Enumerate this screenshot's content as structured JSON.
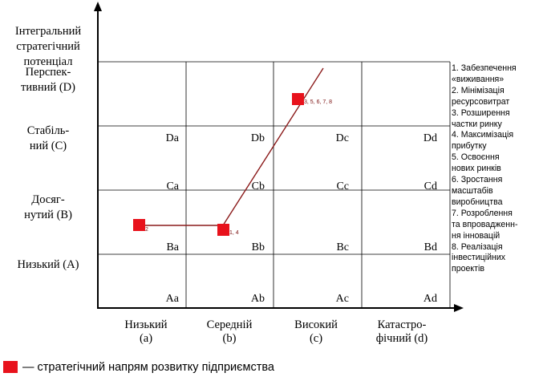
{
  "y_axis": {
    "title_lines": [
      "Інтегральний",
      "стратегічний",
      "потенціал"
    ],
    "levels": [
      {
        "lines": [
          "Перспек-",
          "тивний (D)"
        ]
      },
      {
        "lines": [
          "Стабіль-",
          "ний (C)"
        ]
      },
      {
        "lines": [
          "Досяг-",
          "нутий (B)"
        ]
      },
      {
        "lines": [
          "Низький (A)"
        ]
      }
    ]
  },
  "x_axis": {
    "levels": [
      {
        "lines": [
          "Низький",
          "(a)"
        ]
      },
      {
        "lines": [
          "Середній",
          "(b)"
        ]
      },
      {
        "lines": [
          "Високий",
          "(c)"
        ]
      },
      {
        "lines": [
          "Катастро-",
          "фічний (d)"
        ]
      }
    ]
  },
  "cells": [
    [
      "Da",
      "Db",
      "Dc",
      "Dd"
    ],
    [
      "Ca",
      "Cb",
      "Cc",
      "Cd"
    ],
    [
      "Ba",
      "Bb",
      "Bc",
      "Bd"
    ],
    [
      "Aa",
      "Ab",
      "Ac",
      "Ad"
    ]
  ],
  "points": [
    {
      "label": "2"
    },
    {
      "label": "1, 4"
    },
    {
      "label": "3, 5, 6, 7, 8"
    }
  ],
  "legend_lines": [
    "1. Забезпечення",
    "«виживання»",
    "2. Мінімізація",
    "ресурсовитрат",
    "3. Розширення",
    "частки ринку",
    "4. Максимізація",
    "прибутку",
    "5. Освоєння",
    "нових ринків",
    "6. Зростання",
    "масштабів",
    "виробництва",
    "7. Розроблення",
    "та впровадженн-",
    "ня інновацій",
    "8. Реалізація",
    "інвестиційних",
    "проектів"
  ],
  "footer_text": "— стратегічний напрям розвитку підприємства",
  "colors": {
    "marker": "#e8121c",
    "line": "#8b1a1a",
    "grid": "#000000"
  }
}
